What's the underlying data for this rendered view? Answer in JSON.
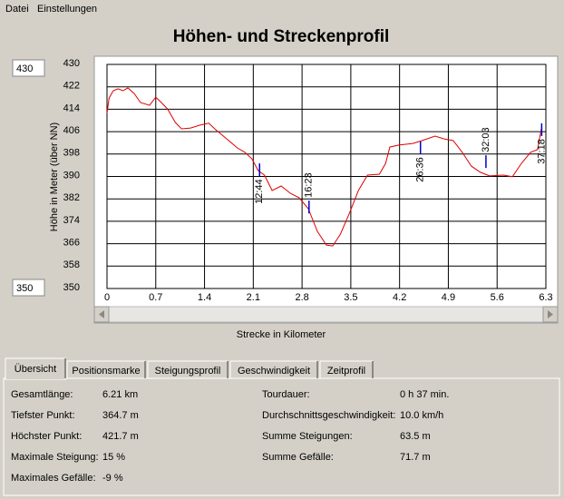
{
  "menu": [
    "Datei",
    "Einstellungen"
  ],
  "axis_inputs": {
    "max": "430",
    "min": "350"
  },
  "chart_data": {
    "type": "line",
    "title": "Höhen- und Streckenprofil",
    "x_label": "Strecke in Kilometer",
    "y_label": "Höhe in Meter (über NN)",
    "x": [
      0,
      0.03,
      0.09,
      0.16,
      0.23,
      0.3,
      0.39,
      0.48,
      0.61,
      0.7,
      0.78,
      0.87,
      0.98,
      1.07,
      1.2,
      1.33,
      1.46,
      1.56,
      1.72,
      1.87,
      1.98,
      2.08,
      2.17,
      2.26,
      2.37,
      2.5,
      2.63,
      2.76,
      2.89,
      3.02,
      3.15,
      3.24,
      3.35,
      3.48,
      3.61,
      3.74,
      3.91,
      4.0,
      4.06,
      4.19,
      4.39,
      4.52,
      4.71,
      4.84,
      4.97,
      5.1,
      5.23,
      5.36,
      5.49,
      5.69,
      5.82,
      5.95,
      6.08,
      6.18,
      6.24
    ],
    "values": [
      412.5,
      418,
      420.6,
      421.3,
      420.6,
      421.6,
      419.6,
      416.4,
      415.4,
      418.3,
      416.4,
      414.1,
      409.3,
      407,
      407.3,
      408.3,
      409,
      406.7,
      403.4,
      400.2,
      398.6,
      396.3,
      392.1,
      390.5,
      385,
      386.6,
      384,
      382.4,
      378.5,
      370.4,
      365.5,
      365.2,
      369.4,
      376.9,
      385,
      390.5,
      390.8,
      394.7,
      400.5,
      401.2,
      401.8,
      402.8,
      404.4,
      403.4,
      402.8,
      398.6,
      393.7,
      391.5,
      390.2,
      390.5,
      389.9,
      394.7,
      398.6,
      399.6,
      407.7
    ],
    "color": "#e00000",
    "markers": [
      {
        "x": 2.19,
        "y": 392.4,
        "label": "12:44"
      },
      {
        "x": 2.9,
        "y": 379.1,
        "label": "16:23"
      },
      {
        "x": 4.5,
        "y": 400.2,
        "label": "26:36"
      },
      {
        "x": 5.44,
        "y": 395.3,
        "label": "32:03"
      },
      {
        "x": 6.24,
        "y": 406.7,
        "label": "37:18"
      }
    ],
    "marker_color": "#0000cc",
    "xlim": [
      0,
      6.3
    ],
    "xticks": [
      0,
      0.7,
      1.4,
      2.1,
      2.8,
      3.5,
      4.2,
      4.9,
      5.6,
      6.3
    ],
    "ylim": [
      350,
      430
    ],
    "yticks": [
      350,
      358,
      366,
      374,
      382,
      390,
      398,
      406,
      414,
      422,
      430
    ],
    "grid": true
  },
  "tabs": [
    "Übersicht",
    "Positionsmarke",
    "Steigungsprofil",
    "Geschwindigkeit",
    "Zeitprofil"
  ],
  "summary": {
    "left": [
      [
        "Gesamtlänge:",
        "6.21 km"
      ],
      [
        "Tiefster Punkt:",
        "364.7 m"
      ],
      [
        "Höchster Punkt:",
        "421.7 m"
      ],
      [
        "Maximale Steigung:",
        "15 %"
      ],
      [
        "Maximales Gefälle:",
        "-9 %"
      ]
    ],
    "right": [
      [
        "Tourdauer:",
        "0 h 37 min."
      ],
      [
        "Durchschnittsgeschwindigkeit:",
        "10.0 km/h"
      ],
      [
        "Summe Steigungen:",
        "63.5 m"
      ],
      [
        "Summe Gefälle:",
        "71.7 m"
      ]
    ]
  }
}
